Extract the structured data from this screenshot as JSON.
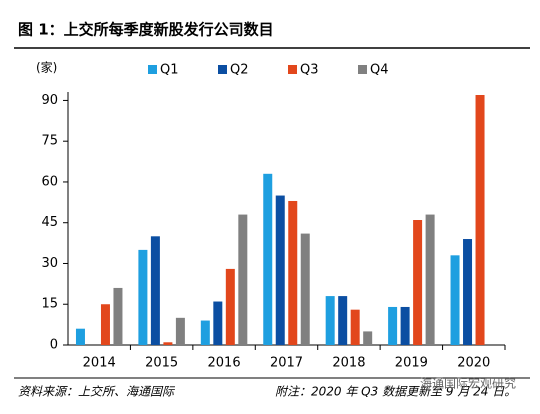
{
  "chart_data": {
    "type": "bar",
    "title": "图 1：上交所每季度新股发行公司数目",
    "y_unit": "(家)",
    "categories": [
      "2014",
      "2015",
      "2016",
      "2017",
      "2018",
      "2019",
      "2020"
    ],
    "series": [
      {
        "name": "Q1",
        "color": "#1e9fe0",
        "values": [
          6,
          35,
          9,
          63,
          18,
          14,
          33
        ]
      },
      {
        "name": "Q2",
        "color": "#0b4ea2",
        "values": [
          0,
          40,
          16,
          55,
          18,
          14,
          39
        ]
      },
      {
        "name": "Q3",
        "color": "#e2471c",
        "values": [
          15,
          1,
          28,
          53,
          13,
          46,
          92
        ]
      },
      {
        "name": "Q4",
        "color": "#808080",
        "values": [
          21,
          10,
          48,
          41,
          5,
          48,
          null
        ]
      }
    ],
    "ylim": [
      0,
      92
    ],
    "yticks": [
      0,
      15,
      30,
      45,
      60,
      75,
      90
    ],
    "source": "资料来源：上交所、海通国际",
    "note": "附注：2020 年 Q3 数据更新至 9 月 24 日。",
    "watermark": "海通国际宏观研究"
  }
}
